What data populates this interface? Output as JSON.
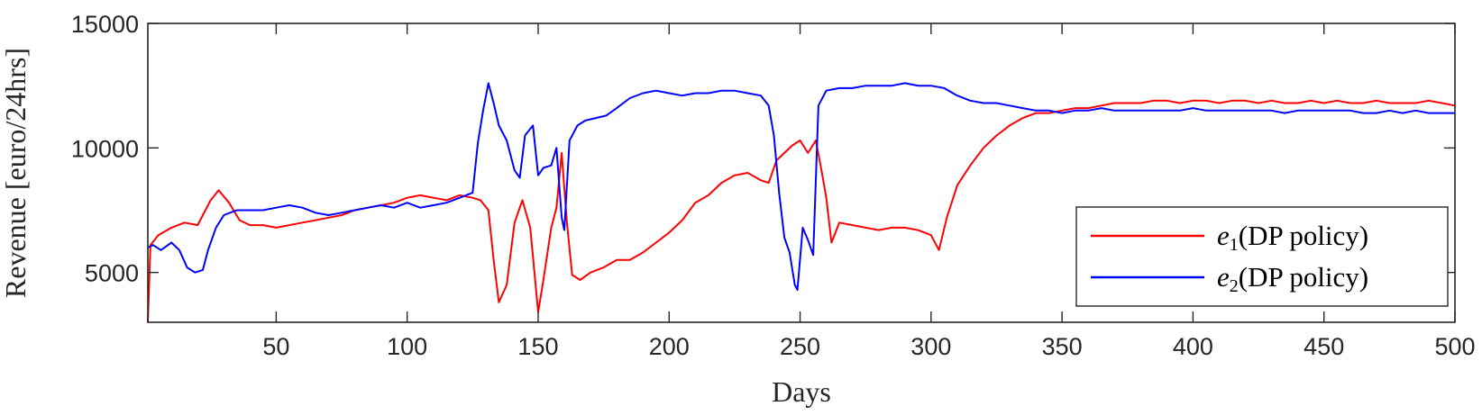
{
  "chart_data": {
    "type": "line",
    "xlabel": "Days",
    "ylabel": "Revenue [euro/24hrs]",
    "xlim": [
      1,
      500
    ],
    "ylim": [
      3000,
      15000
    ],
    "xticks": [
      50,
      100,
      150,
      200,
      250,
      300,
      350,
      400,
      450,
      500
    ],
    "xtick_labels": [
      "50",
      "100",
      "150",
      "200",
      "250",
      "300",
      "350",
      "400",
      "450",
      "500"
    ],
    "yticks": [
      5000,
      10000,
      15000
    ],
    "ytick_labels": [
      "5000",
      "10000",
      "15000"
    ],
    "grid": false,
    "legend_position": "lower-right",
    "series": [
      {
        "name": "e1(DP policy)",
        "legend": {
          "letter": "e",
          "sub": "1",
          "text": "(DP policy)"
        },
        "color": "#ff0000",
        "x": [
          1,
          2,
          5,
          10,
          15,
          20,
          25,
          28,
          32,
          36,
          40,
          45,
          50,
          55,
          60,
          65,
          70,
          75,
          80,
          85,
          90,
          95,
          100,
          105,
          110,
          115,
          120,
          125,
          128,
          131,
          133,
          135,
          138,
          141,
          144,
          147,
          150,
          152,
          155,
          157,
          159,
          161,
          163,
          166,
          170,
          175,
          180,
          185,
          190,
          195,
          200,
          205,
          210,
          215,
          220,
          225,
          230,
          235,
          238,
          241,
          244,
          247,
          250,
          253,
          256,
          258,
          260,
          262,
          265,
          270,
          275,
          280,
          285,
          290,
          295,
          300,
          303,
          306,
          310,
          315,
          320,
          325,
          330,
          335,
          340,
          345,
          350,
          355,
          360,
          365,
          370,
          375,
          380,
          385,
          390,
          395,
          400,
          405,
          410,
          415,
          420,
          425,
          430,
          435,
          440,
          445,
          450,
          455,
          460,
          465,
          470,
          475,
          480,
          485,
          490,
          495,
          500
        ],
        "y": [
          3000,
          6100,
          6500,
          6800,
          7000,
          6900,
          7900,
          8300,
          7800,
          7100,
          6900,
          6900,
          6800,
          6900,
          7000,
          7100,
          7200,
          7300,
          7500,
          7600,
          7700,
          7800,
          8000,
          8100,
          8000,
          7900,
          8100,
          8000,
          7900,
          7500,
          5500,
          3800,
          4500,
          7000,
          7900,
          6800,
          3400,
          4700,
          6800,
          7600,
          9800,
          7000,
          4900,
          4700,
          5000,
          5200,
          5500,
          5500,
          5800,
          6200,
          6600,
          7100,
          7800,
          8100,
          8600,
          8900,
          9000,
          8700,
          8600,
          9500,
          9800,
          10100,
          10300,
          9800,
          10300,
          9200,
          8000,
          6200,
          7000,
          6900,
          6800,
          6700,
          6800,
          6800,
          6700,
          6500,
          5900,
          7200,
          8500,
          9300,
          10000,
          10500,
          10900,
          11200,
          11400,
          11400,
          11500,
          11600,
          11600,
          11700,
          11800,
          11800,
          11800,
          11900,
          11900,
          11800,
          11900,
          11900,
          11800,
          11900,
          11900,
          11800,
          11900,
          11800,
          11800,
          11900,
          11800,
          11900,
          11800,
          11800,
          11900,
          11800,
          11800,
          11800,
          11900,
          11800,
          11700
        ]
      },
      {
        "name": "e2(DP policy)",
        "legend": {
          "letter": "e",
          "sub": "2",
          "text": "(DP policy)"
        },
        "color": "#0000ff",
        "x": [
          1,
          3,
          6,
          10,
          13,
          16,
          19,
          22,
          24,
          27,
          30,
          35,
          40,
          45,
          50,
          55,
          60,
          65,
          70,
          75,
          80,
          85,
          90,
          95,
          100,
          105,
          110,
          115,
          120,
          125,
          127,
          129,
          131,
          133,
          135,
          138,
          141,
          143,
          145,
          148,
          150,
          152,
          155,
          157,
          159,
          160,
          162,
          165,
          168,
          172,
          176,
          180,
          185,
          190,
          195,
          200,
          205,
          210,
          215,
          220,
          225,
          230,
          235,
          238,
          240,
          242,
          244,
          246,
          248,
          249,
          251,
          253,
          255,
          257,
          260,
          265,
          270,
          275,
          280,
          285,
          290,
          295,
          300,
          305,
          310,
          315,
          320,
          325,
          330,
          335,
          340,
          345,
          350,
          355,
          360,
          365,
          370,
          375,
          380,
          385,
          390,
          395,
          400,
          405,
          410,
          415,
          420,
          425,
          430,
          435,
          440,
          445,
          450,
          455,
          460,
          465,
          470,
          475,
          480,
          485,
          490,
          495,
          500
        ],
        "y": [
          6000,
          6100,
          5900,
          6200,
          5900,
          5200,
          5000,
          5100,
          5900,
          6800,
          7300,
          7500,
          7500,
          7500,
          7600,
          7700,
          7600,
          7400,
          7300,
          7400,
          7500,
          7600,
          7700,
          7600,
          7800,
          7600,
          7700,
          7800,
          8000,
          8200,
          10200,
          11500,
          12600,
          11800,
          10900,
          10300,
          9100,
          8800,
          10500,
          10900,
          8900,
          9200,
          9300,
          10000,
          7200,
          6700,
          10300,
          10900,
          11100,
          11200,
          11300,
          11600,
          12000,
          12200,
          12300,
          12200,
          12100,
          12200,
          12200,
          12300,
          12300,
          12200,
          12100,
          11700,
          10500,
          8200,
          6400,
          5800,
          4500,
          4300,
          6800,
          6300,
          5700,
          11700,
          12300,
          12400,
          12400,
          12500,
          12500,
          12500,
          12600,
          12500,
          12500,
          12400,
          12100,
          11900,
          11800,
          11800,
          11700,
          11600,
          11500,
          11500,
          11400,
          11500,
          11500,
          11600,
          11500,
          11500,
          11500,
          11500,
          11500,
          11500,
          11600,
          11500,
          11500,
          11500,
          11500,
          11500,
          11500,
          11400,
          11500,
          11500,
          11500,
          11500,
          11500,
          11400,
          11400,
          11500,
          11400,
          11500,
          11400,
          11400,
          11400
        ]
      }
    ]
  }
}
